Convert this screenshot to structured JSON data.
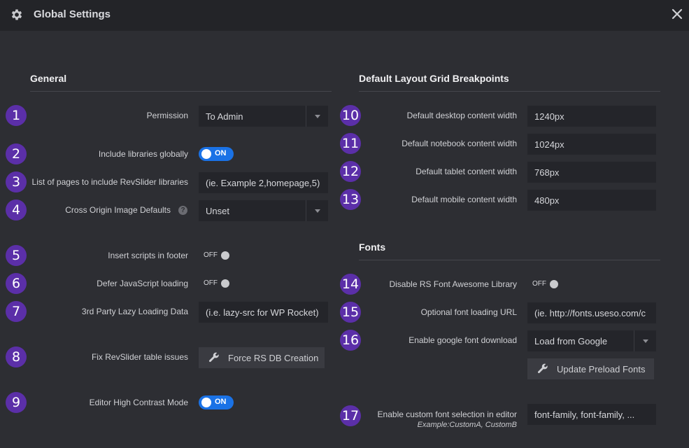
{
  "window": {
    "title": "Global Settings",
    "title_icon": "gear-icon",
    "close_icon": "close-icon"
  },
  "general": {
    "title": "General",
    "rows": [
      {
        "badge": "1",
        "label": "Permission",
        "value": "To Admin"
      },
      {
        "badge": "2",
        "label": "Include libraries globally",
        "toggle": "ON"
      },
      {
        "badge": "3",
        "label": "List of pages to include RevSlider libraries",
        "placeholder": "(ie. Example 2,homepage,5)"
      },
      {
        "badge": "4",
        "label": "Cross Origin Image Defaults",
        "value": "Unset",
        "help": "?"
      },
      {
        "badge": "5",
        "label": "Insert scripts in footer",
        "toggle": "OFF"
      },
      {
        "badge": "6",
        "label": "Defer JavaScript loading",
        "toggle": "OFF"
      },
      {
        "badge": "7",
        "label": "3rd Party Lazy Loading Data",
        "placeholder": "(i.e. lazy-src for WP Rocket)"
      },
      {
        "badge": "8",
        "label": "Fix RevSlider table issues",
        "button": "Force RS DB Creation"
      },
      {
        "badge": "9",
        "label": "Editor High Contrast Mode",
        "toggle": "ON"
      }
    ]
  },
  "breakpoints": {
    "title": "Default Layout Grid Breakpoints",
    "rows": [
      {
        "badge": "10",
        "label": "Default desktop content width",
        "value": "1240px"
      },
      {
        "badge": "11",
        "label": "Default notebook content width",
        "value": "1024px"
      },
      {
        "badge": "12",
        "label": "Default tablet content width",
        "value": "768px"
      },
      {
        "badge": "13",
        "label": "Default mobile content width",
        "value": "480px"
      }
    ]
  },
  "fonts": {
    "title": "Fonts",
    "rows": [
      {
        "badge": "14",
        "label": "Disable RS Font Awesome Library",
        "toggle": "OFF"
      },
      {
        "badge": "15",
        "label": "Optional font loading URL",
        "placeholder": "(ie. http://fonts.useso.com/c"
      },
      {
        "badge": "16",
        "label": "Enable google font download",
        "value": "Load from Google",
        "button": "Update Preload Fonts"
      },
      {
        "badge": "17",
        "label": "Enable custom font selection in editor",
        "sublabel": "Example:CustomA, CustomB",
        "value": "font-family, font-family, ..."
      }
    ]
  },
  "colors": {
    "accent": "#1a72e6",
    "badge": "#5b2fa8",
    "background": "#2d2e33",
    "titlebar": "#232428"
  }
}
